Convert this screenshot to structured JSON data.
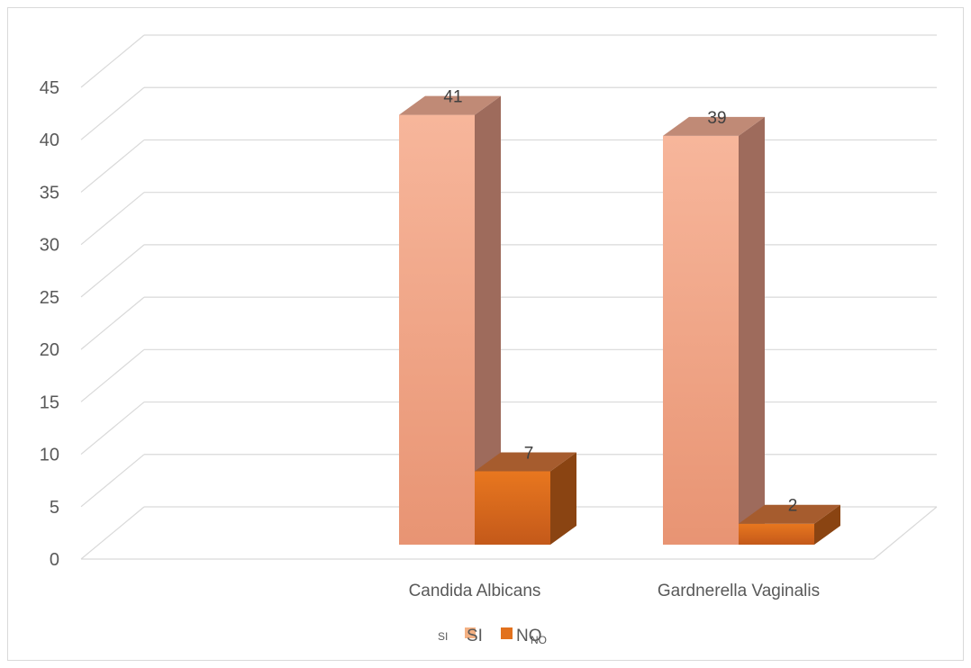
{
  "chart_data": {
    "type": "bar",
    "style": "3d-clustered-column",
    "categories": [
      "",
      "Candida Albicans",
      "Gardnerella Vaginalis"
    ],
    "series": [
      {
        "name": "SI",
        "values": [
          null,
          41,
          39
        ],
        "color": "#f4b183",
        "side_color": "#9e6b5c",
        "top_color": "#c08a76"
      },
      {
        "name": "NO",
        "values": [
          null,
          7,
          2
        ],
        "color": "#e2711d",
        "side_color": "#8a4412",
        "top_color": "#a65c2e"
      }
    ],
    "data_labels": [
      [
        null,
        "41",
        "39"
      ],
      [
        null,
        "7",
        "2"
      ]
    ],
    "y_ticks": [
      "0",
      "5",
      "10",
      "15",
      "20",
      "25",
      "30",
      "35",
      "40",
      "45"
    ],
    "ylim": [
      0,
      45
    ],
    "grid": true,
    "legend_position": "bottom",
    "legend_labels": [
      "SI",
      "NO"
    ],
    "legend_overlay_labels": [
      "SI",
      "NO"
    ],
    "title": "",
    "xlabel": "",
    "ylabel": ""
  }
}
